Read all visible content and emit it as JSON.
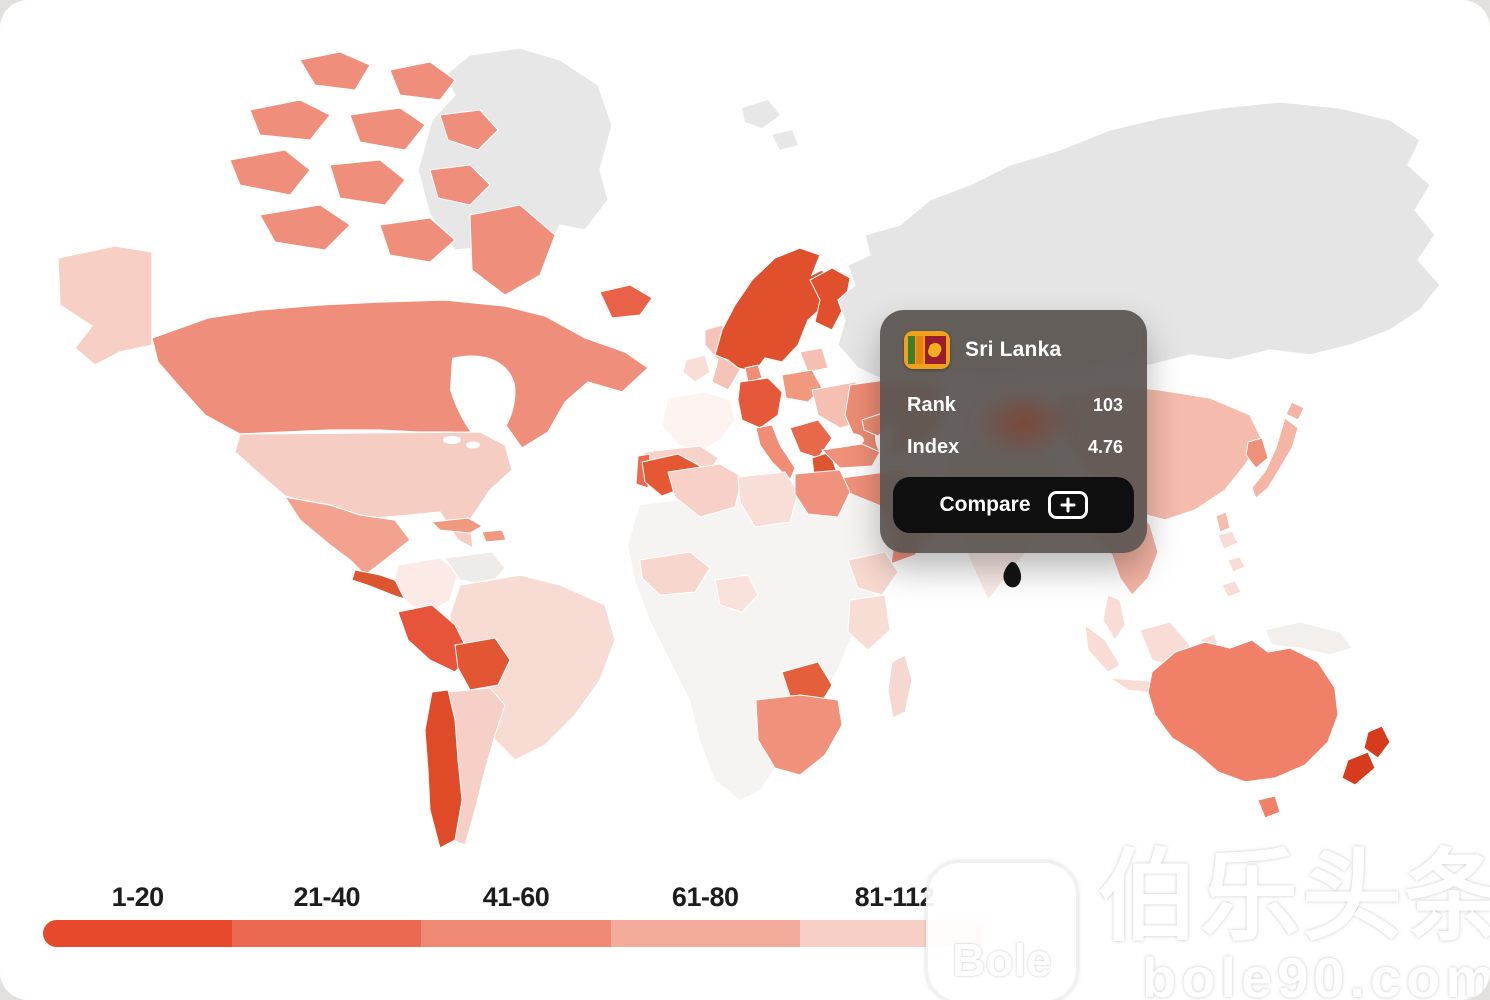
{
  "page": {
    "card_bg": "#ffffff",
    "page_bg": "#e3e1e0"
  },
  "tooltip": {
    "country": "Sri Lanka",
    "rank_label": "Rank",
    "rank_value": "103",
    "index_label": "Index",
    "index_value": "4.76",
    "compare_label": "Compare",
    "flag_icon": "sri-lanka-flag"
  },
  "legend": {
    "items": [
      {
        "label": "1-20",
        "color": "#e6492b"
      },
      {
        "label": "21-40",
        "color": "#eb6950"
      },
      {
        "label": "41-60",
        "color": "#ee8a73"
      },
      {
        "label": "61-80",
        "color": "#f3ab9c"
      },
      {
        "label": "81-112",
        "color": "#f7cfc6"
      }
    ]
  },
  "watermark": {
    "logo_text": "Bole",
    "title_text": "伯乐头条",
    "url_text": "bole90.com"
  },
  "map": {
    "ocean": "#ffffff",
    "fills": {
      "greenland": "#e8e7e7",
      "svalbard": "#e8e7e7",
      "russia": "#e6e5e5",
      "canada": "#ef8e7a",
      "alaska": "#f7cfc5",
      "usa": "#f6cdc3",
      "mexico": "#f2a28e",
      "central_america": "#da5530",
      "caribbean": "#f0997f",
      "colombia": "#fbeae5",
      "venezuela": "#efebe8",
      "brazil": "#f8dbd3",
      "peru": "#e6543a",
      "bolivia": "#e35634",
      "chile": "#df4a28",
      "argentina": "#f6cfc6",
      "iceland": "#e96147",
      "uk": "#f5c3b8",
      "ireland": "#f9ded7",
      "scandinavia": "#e1502d",
      "denmark": "#ef8d76",
      "baltics": "#f5c0b2",
      "france": "#fdf3f0",
      "germany": "#e5583a",
      "poland": "#f0997f",
      "eastern_europe": "#f5c0b2",
      "balkans": "#e8684a",
      "greece": "#e0532f",
      "italy": "#ef8d76",
      "spain": "#f7d2c9",
      "portugal": "#ea6a4e",
      "turkey": "#ef9078",
      "caucasus": "#ee8d74",
      "arabia": "#f0917b",
      "africa_base": "#f6f4f3",
      "morocco": "#e45933",
      "algeria": "#f7d0c7",
      "libya": "#f9ded7",
      "egypt": "#f0927d",
      "west_africa": "#f7d6cd",
      "nigeria": "#f9e2db",
      "ethiopia": "#f8d9d0",
      "kenya": "#f8ddd5",
      "botswana": "#e4603c",
      "south_africa": "#f0917b",
      "madagascar": "#f6d8d0",
      "kazakhstan": "#ee8d74",
      "china": "#f5bbac",
      "korea": "#ef9078",
      "japan": "#f4b5a5",
      "taiwan": "#f5bbac",
      "indochina": "#f3b3a3",
      "malaysia": "#f8dcd5",
      "philippines": "#f8dcd5",
      "indonesia": "#f8dcd5",
      "new_guinea": "#f3efec",
      "india": "#fbeae6",
      "sri_lanka": "#141414",
      "australia": "#f08168",
      "new_zealand": "#d63c1c"
    }
  },
  "chart_data": {
    "type": "choropleth",
    "title": "",
    "legend_buckets": [
      {
        "range": "1-20",
        "color": "#e6492b"
      },
      {
        "range": "21-40",
        "color": "#eb6950"
      },
      {
        "range": "41-60",
        "color": "#ee8a73"
      },
      {
        "range": "61-80",
        "color": "#f3ab9c"
      },
      {
        "range": "81-112",
        "color": "#f7cfc6"
      }
    ],
    "no_data_color": "#e6e5e5",
    "hovered_country": {
      "name": "Sri Lanka",
      "rank": 103,
      "index": 4.76
    }
  }
}
